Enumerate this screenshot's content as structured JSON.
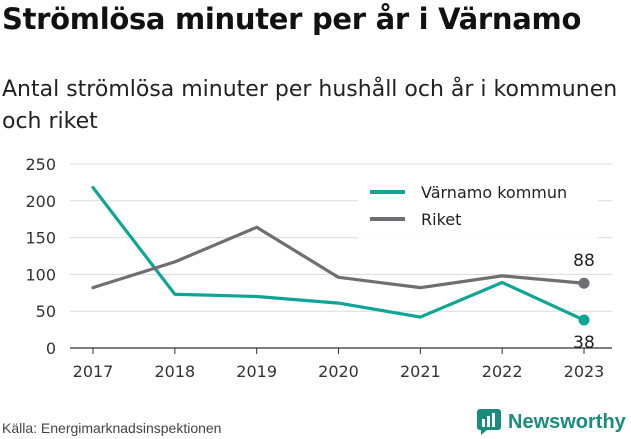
{
  "header": {
    "title": "Strömlösa minuter per år i Värnamo",
    "subtitle": "Antal strömlösa minuter per hushåll och år i kommunen och riket"
  },
  "footer": {
    "source": "Källa: Energimarknadsinspektionen",
    "brand": "Newsworthy"
  },
  "colors": {
    "varnamo": "#0fa596",
    "riket": "#6e6e73",
    "brand": "#1a8c7e"
  },
  "chart_data": {
    "type": "line",
    "title": "",
    "xlabel": "",
    "ylabel": "",
    "categories": [
      "2017",
      "2018",
      "2019",
      "2020",
      "2021",
      "2022",
      "2023"
    ],
    "yticks": [
      0,
      50,
      100,
      150,
      200,
      250
    ],
    "ylim": [
      0,
      250
    ],
    "grid": true,
    "legend_position": "top-right",
    "series": [
      {
        "name": "Värnamo kommun",
        "values": [
          218,
          73,
          70,
          61,
          42,
          89,
          38
        ],
        "end_label": "38"
      },
      {
        "name": "Riket",
        "values": [
          82,
          117,
          164,
          96,
          82,
          98,
          88
        ],
        "end_label": "88"
      }
    ]
  }
}
